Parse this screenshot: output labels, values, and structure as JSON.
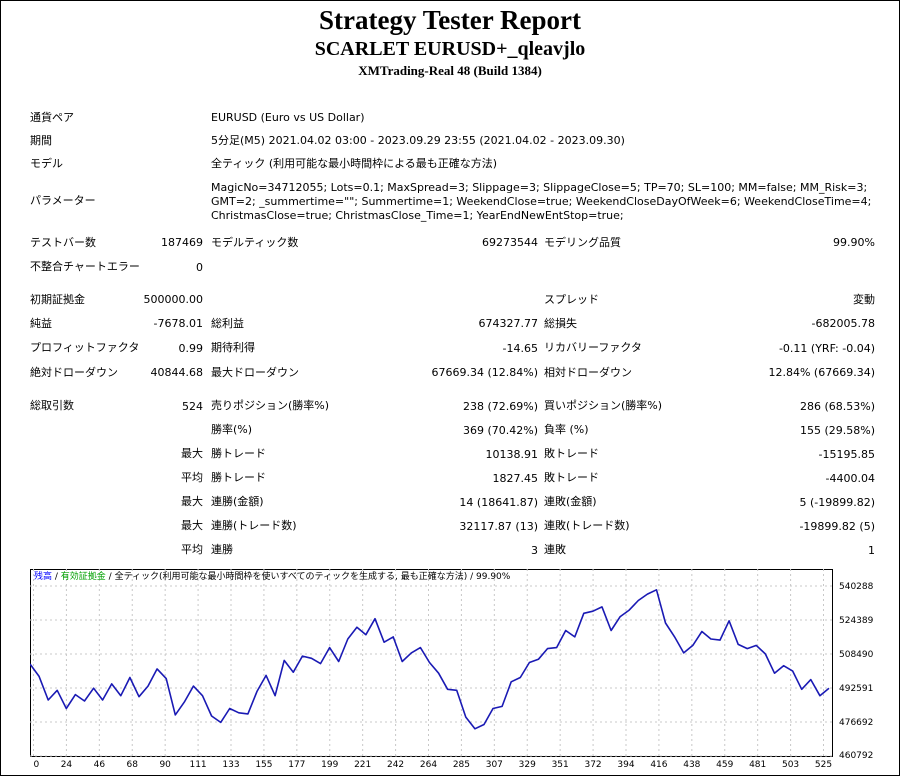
{
  "header": {
    "title": "Strategy Tester Report",
    "subtitle": "SCARLET EURUSD+_qleavjlo",
    "build": "XMTrading-Real 48 (Build 1384)"
  },
  "info": {
    "symbol_label": "通貨ペア",
    "symbol_value": "EURUSD (Euro vs US Dollar)",
    "period_label": "期間",
    "period_value": "5分足(M5) 2021.04.02 03:00 - 2023.09.29 23:55 (2021.04.02 - 2023.09.30)",
    "model_label": "モデル",
    "model_value": "全ティック (利用可能な最小時間枠による最も正確な方法)",
    "params_label": "パラメーター",
    "params_value": "MagicNo=34712055; Lots=0.1; MaxSpread=3; Slippage=3; SlippageClose=5; TP=70; SL=100; MM=false; MM_Risk=3; GMT=2; _summertime=\"\"; Summertime=1; WeekendClose=true; WeekendCloseDayOfWeek=6; WeekendCloseTime=4; ChristmasClose=true; ChristmasClose_Time=1; YearEndNewEntStop=true;"
  },
  "test": {
    "bars_label": "テストバー数",
    "bars_value": "187469",
    "ticks_label": "モデルティック数",
    "ticks_value": "69273544",
    "quality_label": "モデリング品質",
    "quality_value": "99.90%",
    "errors_label": "不整合チャートエラー",
    "errors_value": "0"
  },
  "results": {
    "deposit_label": "初期証拠金",
    "deposit_value": "500000.00",
    "spread_label": "スプレッド",
    "spread_value": "変動",
    "net_label": "純益",
    "net_value": "-7678.01",
    "gross_profit_label": "総利益",
    "gross_profit_value": "674327.77",
    "gross_loss_label": "総損失",
    "gross_loss_value": "-682005.78",
    "pf_label": "プロフィットファクタ",
    "pf_value": "0.99",
    "expected_label": "期待利得",
    "expected_value": "-14.65",
    "recovery_label": "リカバリーファクタ",
    "recovery_value": "-0.11 (YRF: -0.04)",
    "abs_dd_label": "絶対ドローダウン",
    "abs_dd_value": "40844.68",
    "max_dd_label": "最大ドローダウン",
    "max_dd_value": "67669.34 (12.84%)",
    "rel_dd_label": "相対ドローダウン",
    "rel_dd_value": "12.84% (67669.34)"
  },
  "trades": {
    "total_label": "総取引数",
    "total_value": "524",
    "short_label": "売りポジション(勝率%)",
    "short_value": "238 (72.69%)",
    "long_label": "買いポジション(勝率%)",
    "long_value": "286 (68.53%)",
    "win_rate_label": "勝率(%)",
    "win_rate_value": "369 (70.42%)",
    "loss_rate_label": "負率 (%)",
    "loss_rate_value": "155 (29.58%)",
    "max_label_1": "最大",
    "largest_win_label": "勝トレード",
    "largest_win_value": "10138.91",
    "largest_loss_label": "敗トレード",
    "largest_loss_value": "-15195.85",
    "avg_label_1": "平均",
    "avg_win_label": "勝トレード",
    "avg_win_value": "1827.45",
    "avg_loss_label": "敗トレード",
    "avg_loss_value": "-4400.04",
    "max_label_2": "最大",
    "max_consec_win_label": "連勝(金額)",
    "max_consec_win_value": "14 (18641.87)",
    "max_consec_loss_label": "連敗(金額)",
    "max_consec_loss_value": "5 (-19899.82)",
    "max_label_3": "最大",
    "max_consec_profit_label": "連勝(トレード数)",
    "max_consec_profit_value": "32117.87 (13)",
    "max_consec_lossamt_label": "連敗(トレード数)",
    "max_consec_lossamt_value": "-19899.82 (5)",
    "avg_label_2": "平均",
    "avg_consec_win_label": "連勝",
    "avg_consec_win_value": "3",
    "avg_consec_loss_label": "連敗",
    "avg_consec_loss_value": "1"
  },
  "colors": {
    "line": "#1a1ab4",
    "legend_balance": "#0000ff",
    "legend_equity": "#00a000",
    "grid": "#c8c8c8"
  },
  "chart_data": {
    "type": "line",
    "legend": {
      "balance": "残高",
      "sep1": " / ",
      "equity": "有効証拠金",
      "sep2": " / ",
      "model": "全ティック(利用可能な最小時間枠を使いすべてのティックを生成する, 最も正確な方法)",
      "sep3": " / ",
      "quality": "99.90%"
    },
    "x_ticks": [
      "0",
      "24",
      "46",
      "68",
      "90",
      "111",
      "133",
      "155",
      "177",
      "199",
      "221",
      "242",
      "264",
      "285",
      "307",
      "329",
      "351",
      "372",
      "394",
      "416",
      "438",
      "459",
      "481",
      "503",
      "525"
    ],
    "y_ticks": [
      "540288",
      "524389",
      "508490",
      "492591",
      "476692",
      "460792"
    ],
    "ylim": [
      460792,
      548237
    ],
    "xlim": [
      0,
      530
    ],
    "grid": true,
    "series": [
      {
        "x": [
          0,
          6,
          12,
          18,
          24,
          30,
          36,
          42,
          48,
          54,
          60,
          66,
          72,
          78,
          84,
          90,
          96,
          102,
          108,
          114,
          120,
          126,
          132,
          138,
          144,
          150,
          156,
          162,
          168,
          174,
          180,
          186,
          192,
          198,
          204,
          210,
          216,
          222,
          228,
          234,
          240,
          246,
          252,
          258,
          264,
          270,
          276,
          282,
          288,
          294,
          300,
          306,
          312,
          318,
          324,
          330,
          336,
          342,
          348,
          354,
          360,
          366,
          372,
          378,
          384,
          390,
          396,
          402,
          408,
          414,
          420,
          426,
          432,
          438,
          444,
          450,
          456,
          462,
          468,
          474,
          480,
          486,
          492,
          498,
          504,
          510,
          516,
          522,
          528
        ],
        "values": [
          503800,
          498000,
          487000,
          491500,
          483000,
          489500,
          486500,
          492500,
          487000,
          494500,
          489000,
          497500,
          488500,
          493500,
          501500,
          497000,
          480000,
          486000,
          493500,
          489000,
          479500,
          476500,
          483000,
          481000,
          480500,
          491000,
          498500,
          489000,
          505500,
          500000,
          507500,
          506500,
          504000,
          511500,
          505000,
          515500,
          521000,
          517500,
          525000,
          514000,
          516500,
          505000,
          509000,
          511500,
          504500,
          499500,
          492000,
          491500,
          479000,
          473500,
          475500,
          483000,
          484000,
          495500,
          497500,
          504500,
          506000,
          511000,
          511500,
          519500,
          516500,
          527500,
          528500,
          530500,
          519500,
          526000,
          529000,
          533500,
          536500,
          538500,
          523000,
          516500,
          509000,
          512500,
          519000,
          515500,
          515000,
          524000,
          513000,
          511000,
          512500,
          508500,
          499500,
          503000,
          500500,
          492000,
          496500,
          489000,
          492500
        ]
      }
    ]
  }
}
